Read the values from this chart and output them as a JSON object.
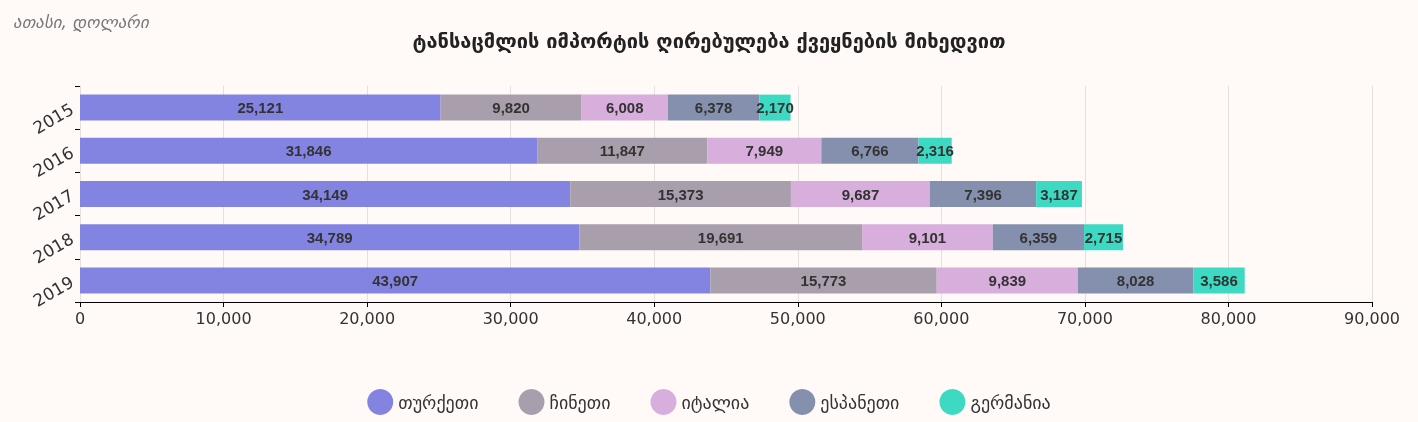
{
  "chart_data": {
    "type": "bar",
    "orientation": "horizontal",
    "stacked": true,
    "title": "ტანსაცმლის იმპორტის ღირებულება ქვეყნების მიხედვით",
    "subtitle": "ათასი, დოლარი",
    "categories": [
      "2015",
      "2016",
      "2017",
      "2018",
      "2019"
    ],
    "series": [
      {
        "name": "თურქეთი",
        "color": "#8383e2",
        "values": [
          25121,
          31846,
          34149,
          34789,
          43907
        ],
        "value_labels": [
          "25,121",
          "31,846",
          "34,149",
          "34,789",
          "43,907"
        ]
      },
      {
        "name": "ჩინეთი",
        "color": "#a99eab",
        "values": [
          9820,
          11847,
          15373,
          19691,
          15773
        ],
        "value_labels": [
          "9,820",
          "11,847",
          "15,373",
          "19,691",
          "15,773"
        ]
      },
      {
        "name": "იტალია",
        "color": "#d7aedc",
        "values": [
          6008,
          7949,
          9687,
          9101,
          9839
        ],
        "value_labels": [
          "6,008",
          "7,949",
          "9,687",
          "9,101",
          "9,839"
        ]
      },
      {
        "name": "ესპანეთი",
        "color": "#8490ad",
        "values": [
          6378,
          6766,
          7396,
          6359,
          8028
        ],
        "value_labels": [
          "6,378",
          "6,766",
          "7,396",
          "6,359",
          "8,028"
        ]
      },
      {
        "name": "გერმანია",
        "color": "#3ed9c3",
        "values": [
          2170,
          2316,
          3187,
          2715,
          3586
        ],
        "value_labels": [
          "2,170",
          "2,316",
          "3,187",
          "2,715",
          "3,586"
        ]
      }
    ],
    "xlim": [
      0,
      90000
    ],
    "xticks": [
      0,
      {
        "value": 10000,
        "label": "10,000"
      },
      {
        "value": 20000,
        "label": "20,000"
      },
      {
        "value": 30000,
        "label": "30,000"
      },
      {
        "value": 40000,
        "label": "40,000"
      },
      {
        "value": 50000,
        "label": "50,000"
      },
      {
        "value": 60000,
        "label": "60,000"
      },
      {
        "value": 70000,
        "label": "70,000"
      },
      {
        "value": 80000,
        "label": "80,000"
      },
      {
        "value": 90000,
        "label": "90,000"
      }
    ],
    "grid": "x",
    "legend": "bottom"
  }
}
